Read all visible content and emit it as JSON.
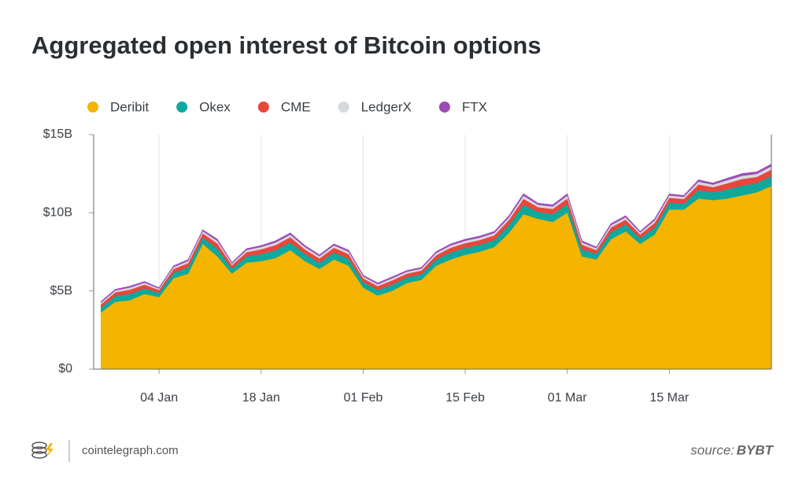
{
  "chart_data": {
    "type": "stacked-area",
    "title": "Aggregated open interest of Bitcoin options",
    "categories": [
      null,
      null,
      null,
      null,
      "04 Jan",
      null,
      null,
      null,
      null,
      null,
      null,
      "18 Jan",
      null,
      null,
      null,
      null,
      null,
      null,
      "01 Feb",
      null,
      null,
      null,
      null,
      null,
      null,
      "15 Feb",
      null,
      null,
      null,
      null,
      null,
      null,
      "01 Mar",
      null,
      null,
      null,
      null,
      null,
      null,
      "15 Mar",
      null,
      null,
      null,
      null,
      null,
      null,
      null
    ],
    "series": [
      {
        "name": "Deribit",
        "color": "#f4b400",
        "values": [
          3.6,
          4.3,
          4.4,
          4.8,
          4.6,
          5.8,
          6.1,
          8.0,
          7.2,
          6.1,
          6.8,
          6.9,
          7.1,
          7.6,
          6.9,
          6.4,
          7.0,
          6.6,
          5.2,
          4.7,
          5.0,
          5.5,
          5.7,
          6.6,
          7.0,
          7.3,
          7.5,
          7.8,
          8.7,
          9.9,
          9.6,
          9.4,
          10.0,
          7.2,
          7.0,
          8.3,
          8.8,
          8.0,
          8.6,
          10.2,
          10.2,
          10.9,
          10.8,
          10.9,
          11.1,
          11.3,
          11.7
        ]
      },
      {
        "name": "Okex",
        "color": "#0fa89c",
        "values": [
          0.32,
          0.36,
          0.4,
          0.36,
          0.27,
          0.36,
          0.4,
          0.4,
          0.5,
          0.32,
          0.4,
          0.45,
          0.5,
          0.5,
          0.45,
          0.4,
          0.45,
          0.45,
          0.36,
          0.36,
          0.4,
          0.36,
          0.36,
          0.4,
          0.45,
          0.45,
          0.45,
          0.45,
          0.5,
          0.59,
          0.45,
          0.5,
          0.54,
          0.45,
          0.36,
          0.45,
          0.45,
          0.36,
          0.45,
          0.45,
          0.4,
          0.54,
          0.5,
          0.59,
          0.63,
          0.59,
          0.63
        ]
      },
      {
        "name": "CME",
        "color": "#e9473b",
        "values": [
          0.21,
          0.24,
          0.27,
          0.24,
          0.18,
          0.24,
          0.27,
          0.27,
          0.33,
          0.21,
          0.27,
          0.3,
          0.33,
          0.33,
          0.3,
          0.27,
          0.3,
          0.3,
          0.24,
          0.24,
          0.27,
          0.24,
          0.24,
          0.27,
          0.3,
          0.3,
          0.3,
          0.3,
          0.33,
          0.39,
          0.3,
          0.33,
          0.36,
          0.3,
          0.24,
          0.3,
          0.3,
          0.24,
          0.3,
          0.3,
          0.27,
          0.36,
          0.33,
          0.39,
          0.42,
          0.39,
          0.42
        ]
      },
      {
        "name": "LedgerX",
        "color": "#d6d9dd",
        "values": [
          0.1,
          0.12,
          0.14,
          0.12,
          0.09,
          0.12,
          0.14,
          0.14,
          0.16,
          0.1,
          0.14,
          0.15,
          0.16,
          0.16,
          0.15,
          0.14,
          0.15,
          0.15,
          0.12,
          0.12,
          0.14,
          0.12,
          0.12,
          0.14,
          0.15,
          0.15,
          0.15,
          0.15,
          0.16,
          0.2,
          0.15,
          0.16,
          0.18,
          0.15,
          0.12,
          0.15,
          0.15,
          0.12,
          0.15,
          0.15,
          0.14,
          0.18,
          0.16,
          0.2,
          0.21,
          0.2,
          0.21
        ]
      },
      {
        "name": "FTX",
        "color": "#9b4db6",
        "values": [
          0.07,
          0.08,
          0.09,
          0.08,
          0.06,
          0.08,
          0.09,
          0.09,
          0.11,
          0.07,
          0.09,
          0.1,
          0.11,
          0.11,
          0.1,
          0.09,
          0.1,
          0.1,
          0.08,
          0.08,
          0.09,
          0.08,
          0.08,
          0.09,
          0.1,
          0.1,
          0.1,
          0.1,
          0.11,
          0.13,
          0.1,
          0.11,
          0.12,
          0.1,
          0.08,
          0.1,
          0.1,
          0.08,
          0.1,
          0.1,
          0.09,
          0.12,
          0.11,
          0.13,
          0.14,
          0.13,
          0.14
        ]
      }
    ],
    "ylim": [
      0,
      15
    ],
    "yticks": [
      {
        "value": 0,
        "label": "$0"
      },
      {
        "value": 5,
        "label": "$5B"
      },
      {
        "value": 10,
        "label": "$10B"
      },
      {
        "value": 15,
        "label": "$15B"
      }
    ],
    "grid": true,
    "legend": "top-left",
    "brand": "cointelegraph.com",
    "source_label": "source:",
    "source": "BYBT"
  }
}
